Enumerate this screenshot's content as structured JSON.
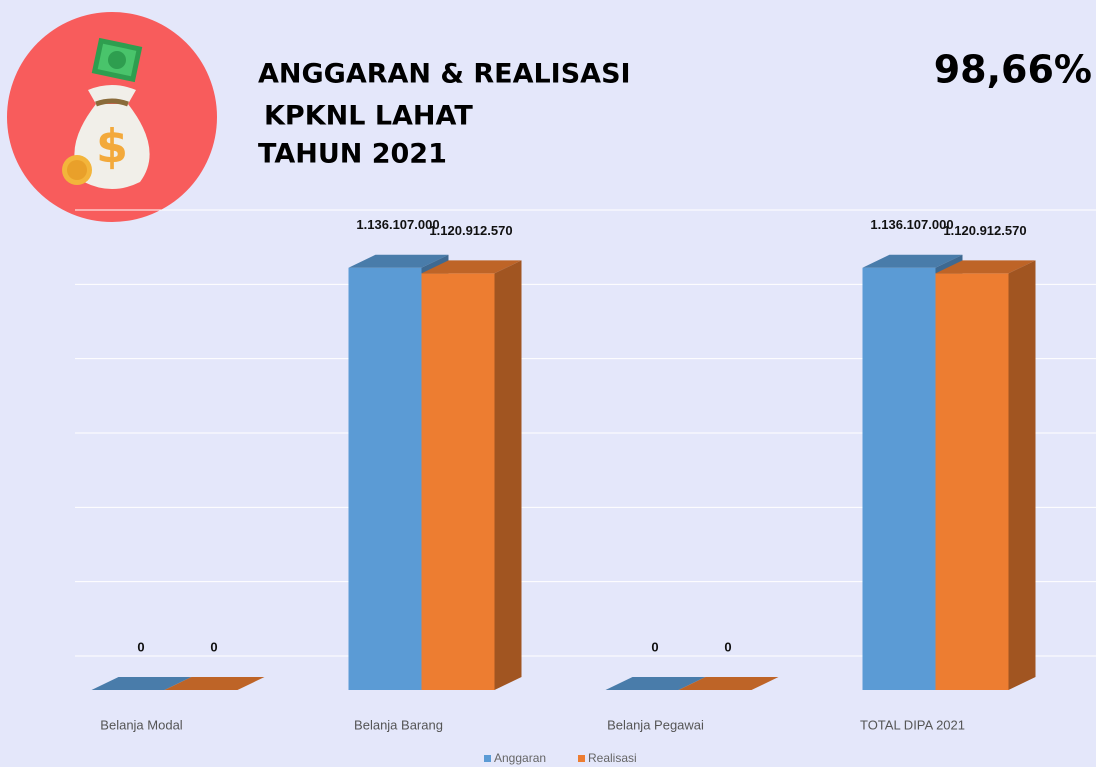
{
  "chart_data": {
    "type": "bar3d",
    "title": [
      "ANGGARAN & REALISASI",
      "KPKNL LAHAT",
      "TAHUN 2021"
    ],
    "annotation": "98,66%",
    "categories": [
      "Belanja Modal",
      "Belanja Barang",
      "Belanja Pegawai",
      "TOTAL DIPA 2021"
    ],
    "series": [
      {
        "name": "Anggaran",
        "color": "#5b9bd5",
        "values": [
          0,
          1136107000,
          0,
          1136107000
        ],
        "value_labels": [
          "0",
          "1.136.107.000",
          "0",
          "1.136.107.000"
        ]
      },
      {
        "name": "Realisasi",
        "color": "#ed7d31",
        "values": [
          0,
          1120912570,
          0,
          1120912570
        ],
        "value_labels": [
          "0",
          "1.120.912.570",
          "0",
          "1.120.912.570"
        ]
      }
    ],
    "ylim": [
      0,
      1200000000
    ],
    "grid": true
  }
}
